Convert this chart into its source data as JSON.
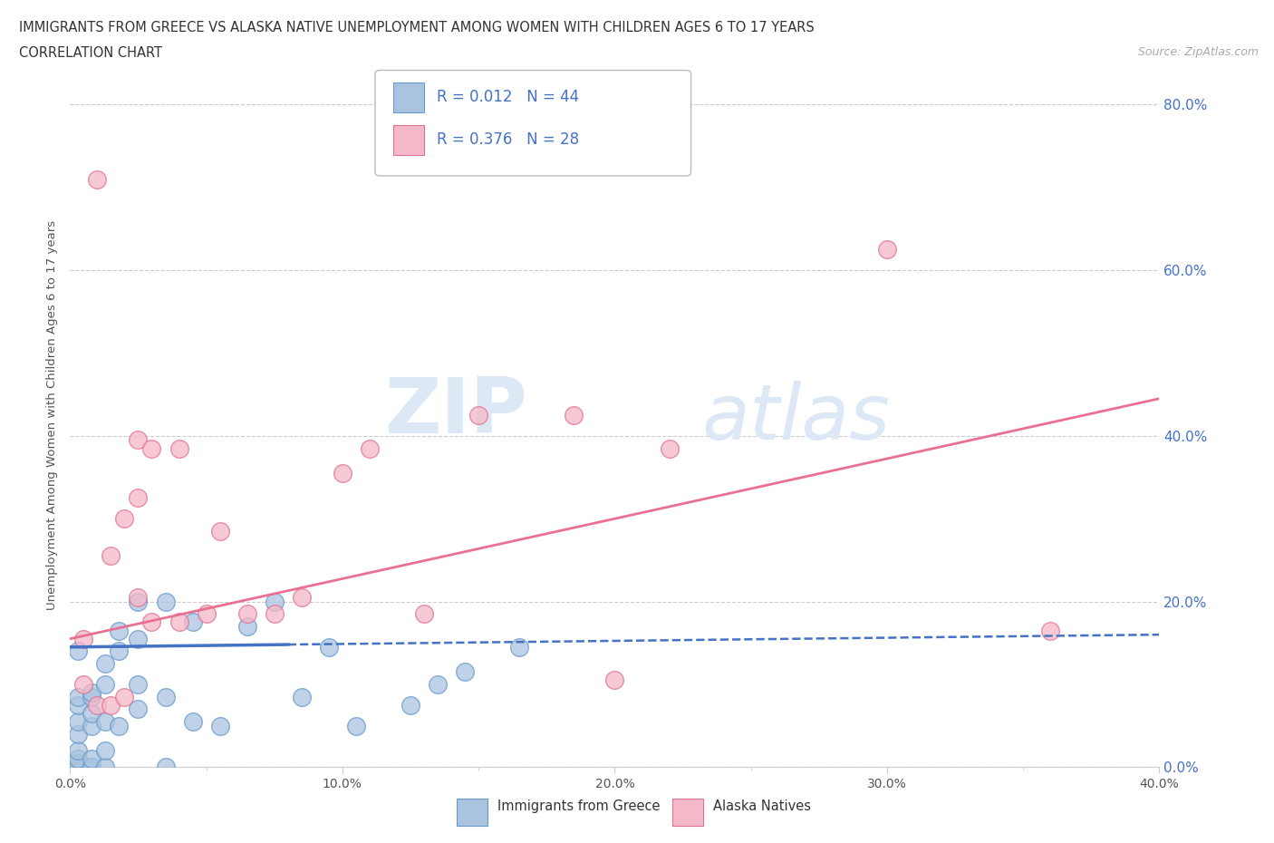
{
  "title_line1": "IMMIGRANTS FROM GREECE VS ALASKA NATIVE UNEMPLOYMENT AMONG WOMEN WITH CHILDREN AGES 6 TO 17 YEARS",
  "title_line2": "CORRELATION CHART",
  "source_text": "Source: ZipAtlas.com",
  "ylabel": "Unemployment Among Women with Children Ages 6 to 17 years",
  "xlim": [
    0.0,
    0.4
  ],
  "ylim": [
    0.0,
    0.85
  ],
  "xtick_labels": [
    "0.0%",
    "",
    "10.0%",
    "",
    "20.0%",
    "",
    "30.0%",
    "",
    "40.0%"
  ],
  "xtick_values": [
    0.0,
    0.05,
    0.1,
    0.15,
    0.2,
    0.25,
    0.3,
    0.35,
    0.4
  ],
  "xtick_display": [
    "0.0%",
    "10.0%",
    "20.0%",
    "30.0%",
    "40.0%"
  ],
  "xtick_display_vals": [
    0.0,
    0.1,
    0.2,
    0.3,
    0.4
  ],
  "ytick_labels_right": [
    "0.0%",
    "20.0%",
    "40.0%",
    "60.0%",
    "80.0%"
  ],
  "ytick_values": [
    0.0,
    0.2,
    0.4,
    0.6,
    0.8
  ],
  "greece_color": "#aac4e0",
  "greece_edge_color": "#6699cc",
  "alaska_color": "#f5b8c8",
  "alaska_edge_color": "#e07090",
  "trend_greece_color": "#4472c4",
  "trend_alaska_color": "#e87090",
  "R_greece": 0.012,
  "N_greece": 44,
  "R_alaska": 0.376,
  "N_alaska": 28,
  "legend_label_greece": "Immigrants from Greece",
  "legend_label_alaska": "Alaska Natives",
  "watermark_zip": "ZIP",
  "watermark_atlas": "atlas",
  "greece_x": [
    0.003,
    0.003,
    0.003,
    0.003,
    0.003,
    0.003,
    0.003,
    0.003,
    0.003,
    0.003,
    0.008,
    0.008,
    0.008,
    0.008,
    0.008,
    0.008,
    0.008,
    0.013,
    0.013,
    0.013,
    0.013,
    0.013,
    0.018,
    0.018,
    0.018,
    0.025,
    0.025,
    0.025,
    0.025,
    0.035,
    0.035,
    0.035,
    0.045,
    0.045,
    0.055,
    0.065,
    0.075,
    0.085,
    0.095,
    0.105,
    0.125,
    0.135,
    0.145,
    0.165
  ],
  "greece_y": [
    0.0,
    0.0,
    0.005,
    0.01,
    0.02,
    0.04,
    0.055,
    0.075,
    0.085,
    0.14,
    0.0,
    0.0,
    0.01,
    0.05,
    0.065,
    0.085,
    0.09,
    0.0,
    0.02,
    0.055,
    0.1,
    0.125,
    0.05,
    0.14,
    0.165,
    0.07,
    0.1,
    0.155,
    0.2,
    0.0,
    0.085,
    0.2,
    0.055,
    0.175,
    0.05,
    0.17,
    0.2,
    0.085,
    0.145,
    0.05,
    0.075,
    0.1,
    0.115,
    0.145
  ],
  "alaska_x": [
    0.005,
    0.005,
    0.01,
    0.015,
    0.015,
    0.02,
    0.02,
    0.025,
    0.025,
    0.025,
    0.03,
    0.03,
    0.04,
    0.04,
    0.05,
    0.055,
    0.065,
    0.075,
    0.085,
    0.1,
    0.11,
    0.13,
    0.15,
    0.185,
    0.2,
    0.22,
    0.3,
    0.36
  ],
  "alaska_y": [
    0.1,
    0.155,
    0.075,
    0.075,
    0.255,
    0.085,
    0.3,
    0.205,
    0.325,
    0.395,
    0.175,
    0.385,
    0.175,
    0.385,
    0.185,
    0.285,
    0.185,
    0.185,
    0.205,
    0.355,
    0.385,
    0.185,
    0.425,
    0.425,
    0.105,
    0.385,
    0.625,
    0.165
  ],
  "alaska_outlier_x": [
    0.01
  ],
  "alaska_outlier_y": [
    0.71
  ],
  "trend_greece_x0": 0.0,
  "trend_greece_x1": 0.4,
  "trend_greece_y0": 0.145,
  "trend_greece_y1": 0.16,
  "trend_alaska_x0": 0.0,
  "trend_alaska_x1": 0.4,
  "trend_alaska_y0": 0.155,
  "trend_alaska_y1": 0.445
}
